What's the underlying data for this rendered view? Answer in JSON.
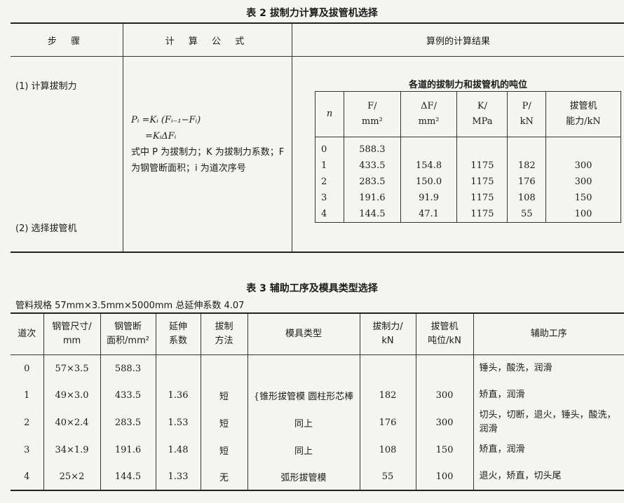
{
  "table2": {
    "title": "表 2  拔制力计算及拔管机选择",
    "headers": [
      "步 骤",
      "计 算 公 式",
      "算例的计算结果"
    ],
    "steps": [
      "(1) 计算拔制力",
      "(2) 选择拔管机"
    ],
    "formula": {
      "line1": "Pᵢ =Kᵢ (Fᵢ₋₁−Fᵢ)",
      "line2": "=KᵢΔFᵢ",
      "note": "式中 P 为拔制力；K 为拔制力系数；F 为钢管断面积；i 为道次序号"
    },
    "inner": {
      "caption": "各道的拔制力和拔管机的吨位",
      "headers": [
        [
          "n",
          ""
        ],
        [
          "F/",
          "mm²"
        ],
        [
          "ΔF/",
          "mm²"
        ],
        [
          "K/",
          "MPa"
        ],
        [
          "P/",
          "kN"
        ],
        [
          "拔管机",
          "能力/kN"
        ]
      ],
      "rows": [
        [
          "0",
          "588.3",
          "",
          "",
          "",
          ""
        ],
        [
          "1",
          "433.5",
          "154.8",
          "1175",
          "182",
          "300"
        ],
        [
          "2",
          "283.5",
          "150.0",
          "1175",
          "176",
          "300"
        ],
        [
          "3",
          "191.6",
          "91.9",
          "1175",
          "108",
          "150"
        ],
        [
          "4",
          "144.5",
          "47.1",
          "1175",
          "55",
          "100"
        ]
      ]
    }
  },
  "table3": {
    "title": "表 3  辅助工序及模具类型选择",
    "spec": "管料规格 57mm×3.5mm×5000mm  总延伸系数 4.07",
    "headers": [
      [
        "道次",
        ""
      ],
      [
        "钢管尺寸/",
        "mm"
      ],
      [
        "钢管断",
        "面积/mm²"
      ],
      [
        "延伸",
        "系数"
      ],
      [
        "拔制",
        "方法"
      ],
      [
        "模具类型",
        ""
      ],
      [
        "拔制力/",
        "kN"
      ],
      [
        "拔管机",
        "吨位/kN"
      ],
      [
        "辅助工序",
        ""
      ]
    ],
    "rows": [
      [
        "0",
        "57×3.5",
        "588.3",
        "",
        "",
        "",
        "",
        "",
        "锤头，酸洗，润滑"
      ],
      [
        "1",
        "49×3.0",
        "433.5",
        "1.36",
        "短",
        "{锥形拔管模 圆柱形芯棒",
        "182",
        "300",
        "矫直，润滑"
      ],
      [
        "2",
        "40×2.4",
        "283.5",
        "1.53",
        "短",
        "同上",
        "176",
        "300",
        "切头，切断，退火，锤头，酸洗，润滑"
      ],
      [
        "3",
        "34×1.9",
        "191.6",
        "1.48",
        "短",
        "同上",
        "108",
        "150",
        "矫直，润滑"
      ],
      [
        "4",
        "25×2",
        "144.5",
        "1.33",
        "无",
        "弧形拔管模",
        "55",
        "100",
        "退火，矫直，切头尾"
      ]
    ]
  }
}
